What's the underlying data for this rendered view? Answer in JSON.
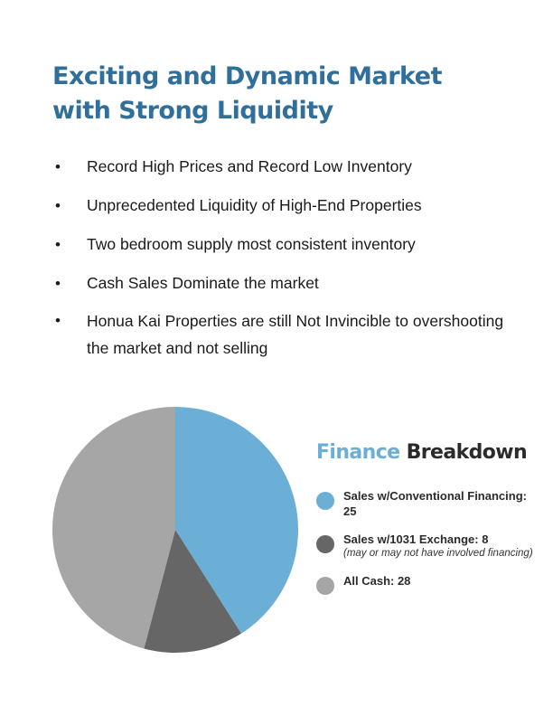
{
  "title_line1": "Exciting and Dynamic Market",
  "title_line2": "with Strong Liquidity",
  "bullets": [
    {
      "text": "Record High Prices and Record Low Inventory"
    },
    {
      "text": "Unprecedented Liquidity of High-End Properties"
    },
    {
      "text": "Two bedroom supply most consistent inventory"
    },
    {
      "text": "Cash Sales Dominate the market"
    },
    {
      "text": "Honua Kai Properties are still Not Invincible to overshooting the market and not selling"
    }
  ],
  "bullet_symbol": "•",
  "legend": {
    "title_word1": "Finance",
    "title_word2": "Breakdown",
    "items": [
      {
        "label": "Sales w/Conventional Financing: 25",
        "note": "",
        "color": "#6baed6"
      },
      {
        "label": "Sales w/1031 Exchange: 8",
        "note": "(may or may not have involved financing)",
        "color": "#666666"
      },
      {
        "label": "All Cash: 28",
        "note": "",
        "color": "#a6a6a6"
      }
    ]
  },
  "chart_data": {
    "type": "pie",
    "categories": [
      "Sales w/Conventional Financing",
      "Sales w/1031 Exchange",
      "All Cash"
    ],
    "values": [
      25,
      8,
      28
    ],
    "colors": [
      "#6baed6",
      "#666666",
      "#a6a6a6"
    ],
    "title": "Finance Breakdown",
    "legend": "right"
  }
}
